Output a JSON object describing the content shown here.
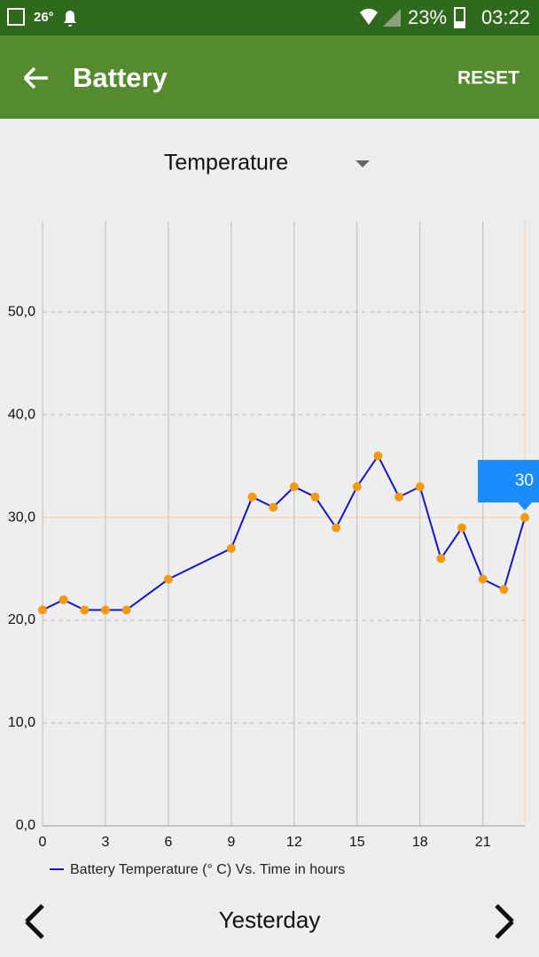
{
  "status_bar": {
    "temperature": "26°",
    "battery": "23%",
    "time": "03:22"
  },
  "app_bar": {
    "title": "Battery",
    "action": "RESET"
  },
  "selector": {
    "label": "Temperature"
  },
  "chart_data": {
    "type": "line",
    "x": [
      0,
      1,
      2,
      3,
      4,
      6,
      9,
      10,
      11,
      12,
      13,
      14,
      15,
      16,
      17,
      18,
      19,
      20,
      21,
      22,
      23
    ],
    "series": [
      {
        "name": "Battery Temperature (° C) Vs. Time in hours",
        "color": "#1414d2",
        "marker_color": "#f39a12",
        "values": [
          21,
          22,
          21,
          21,
          21,
          24,
          27,
          32,
          31,
          33,
          32,
          29,
          33,
          36,
          32,
          33,
          26,
          29,
          24,
          23,
          30
        ]
      }
    ],
    "xlim": [
      0,
      23
    ],
    "ylim": [
      0,
      58.8
    ],
    "xticks": [
      0,
      3,
      6,
      9,
      12,
      15,
      18,
      21
    ],
    "yticks": [
      {
        "value": 0,
        "label": "0,0"
      },
      {
        "value": 10,
        "label": "10,0"
      },
      {
        "value": 20,
        "label": "20,0"
      },
      {
        "value": 30,
        "label": "30,0"
      },
      {
        "value": 40,
        "label": "40,0"
      },
      {
        "value": 50,
        "label": "50,0"
      }
    ],
    "grid": true,
    "highlight": {
      "x": 23,
      "value": 30
    }
  },
  "footer": {
    "label": "Yesterday"
  }
}
